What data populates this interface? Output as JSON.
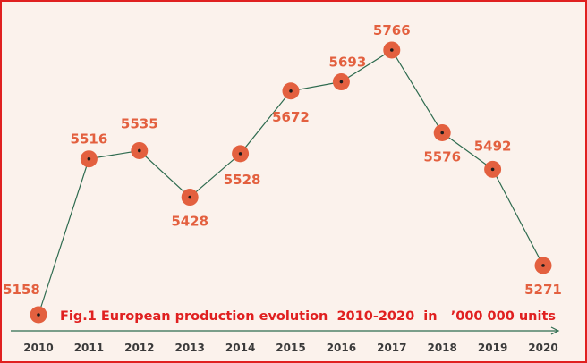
{
  "chart_data": {
    "type": "line",
    "title": "Fig.1 European production evolution  2010-2020  in   ’000 000 units",
    "xlabel": "",
    "ylabel": "",
    "categories": [
      "2010",
      "2011",
      "2012",
      "2013",
      "2014",
      "2015",
      "2016",
      "2017",
      "2018",
      "2019",
      "2020"
    ],
    "values": [
      5158,
      5516,
      5535,
      5428,
      5528,
      5672,
      5693,
      5766,
      5576,
      5492,
      5271
    ],
    "data_labels": [
      "5158",
      "5516",
      "5535",
      "5428",
      "5528",
      "5672",
      "5693",
      "5766",
      "5576",
      "5492",
      "5271"
    ],
    "ylim": [
      5100,
      5800
    ],
    "grid": false,
    "legend": "none",
    "colors": {
      "background": "#fbf2ec",
      "border": "#e02020",
      "marker": "#e3603f",
      "line": "#2e6b4f",
      "label": "#e3603f",
      "caption": "#e02020",
      "axis": "#2e6b4f"
    }
  }
}
